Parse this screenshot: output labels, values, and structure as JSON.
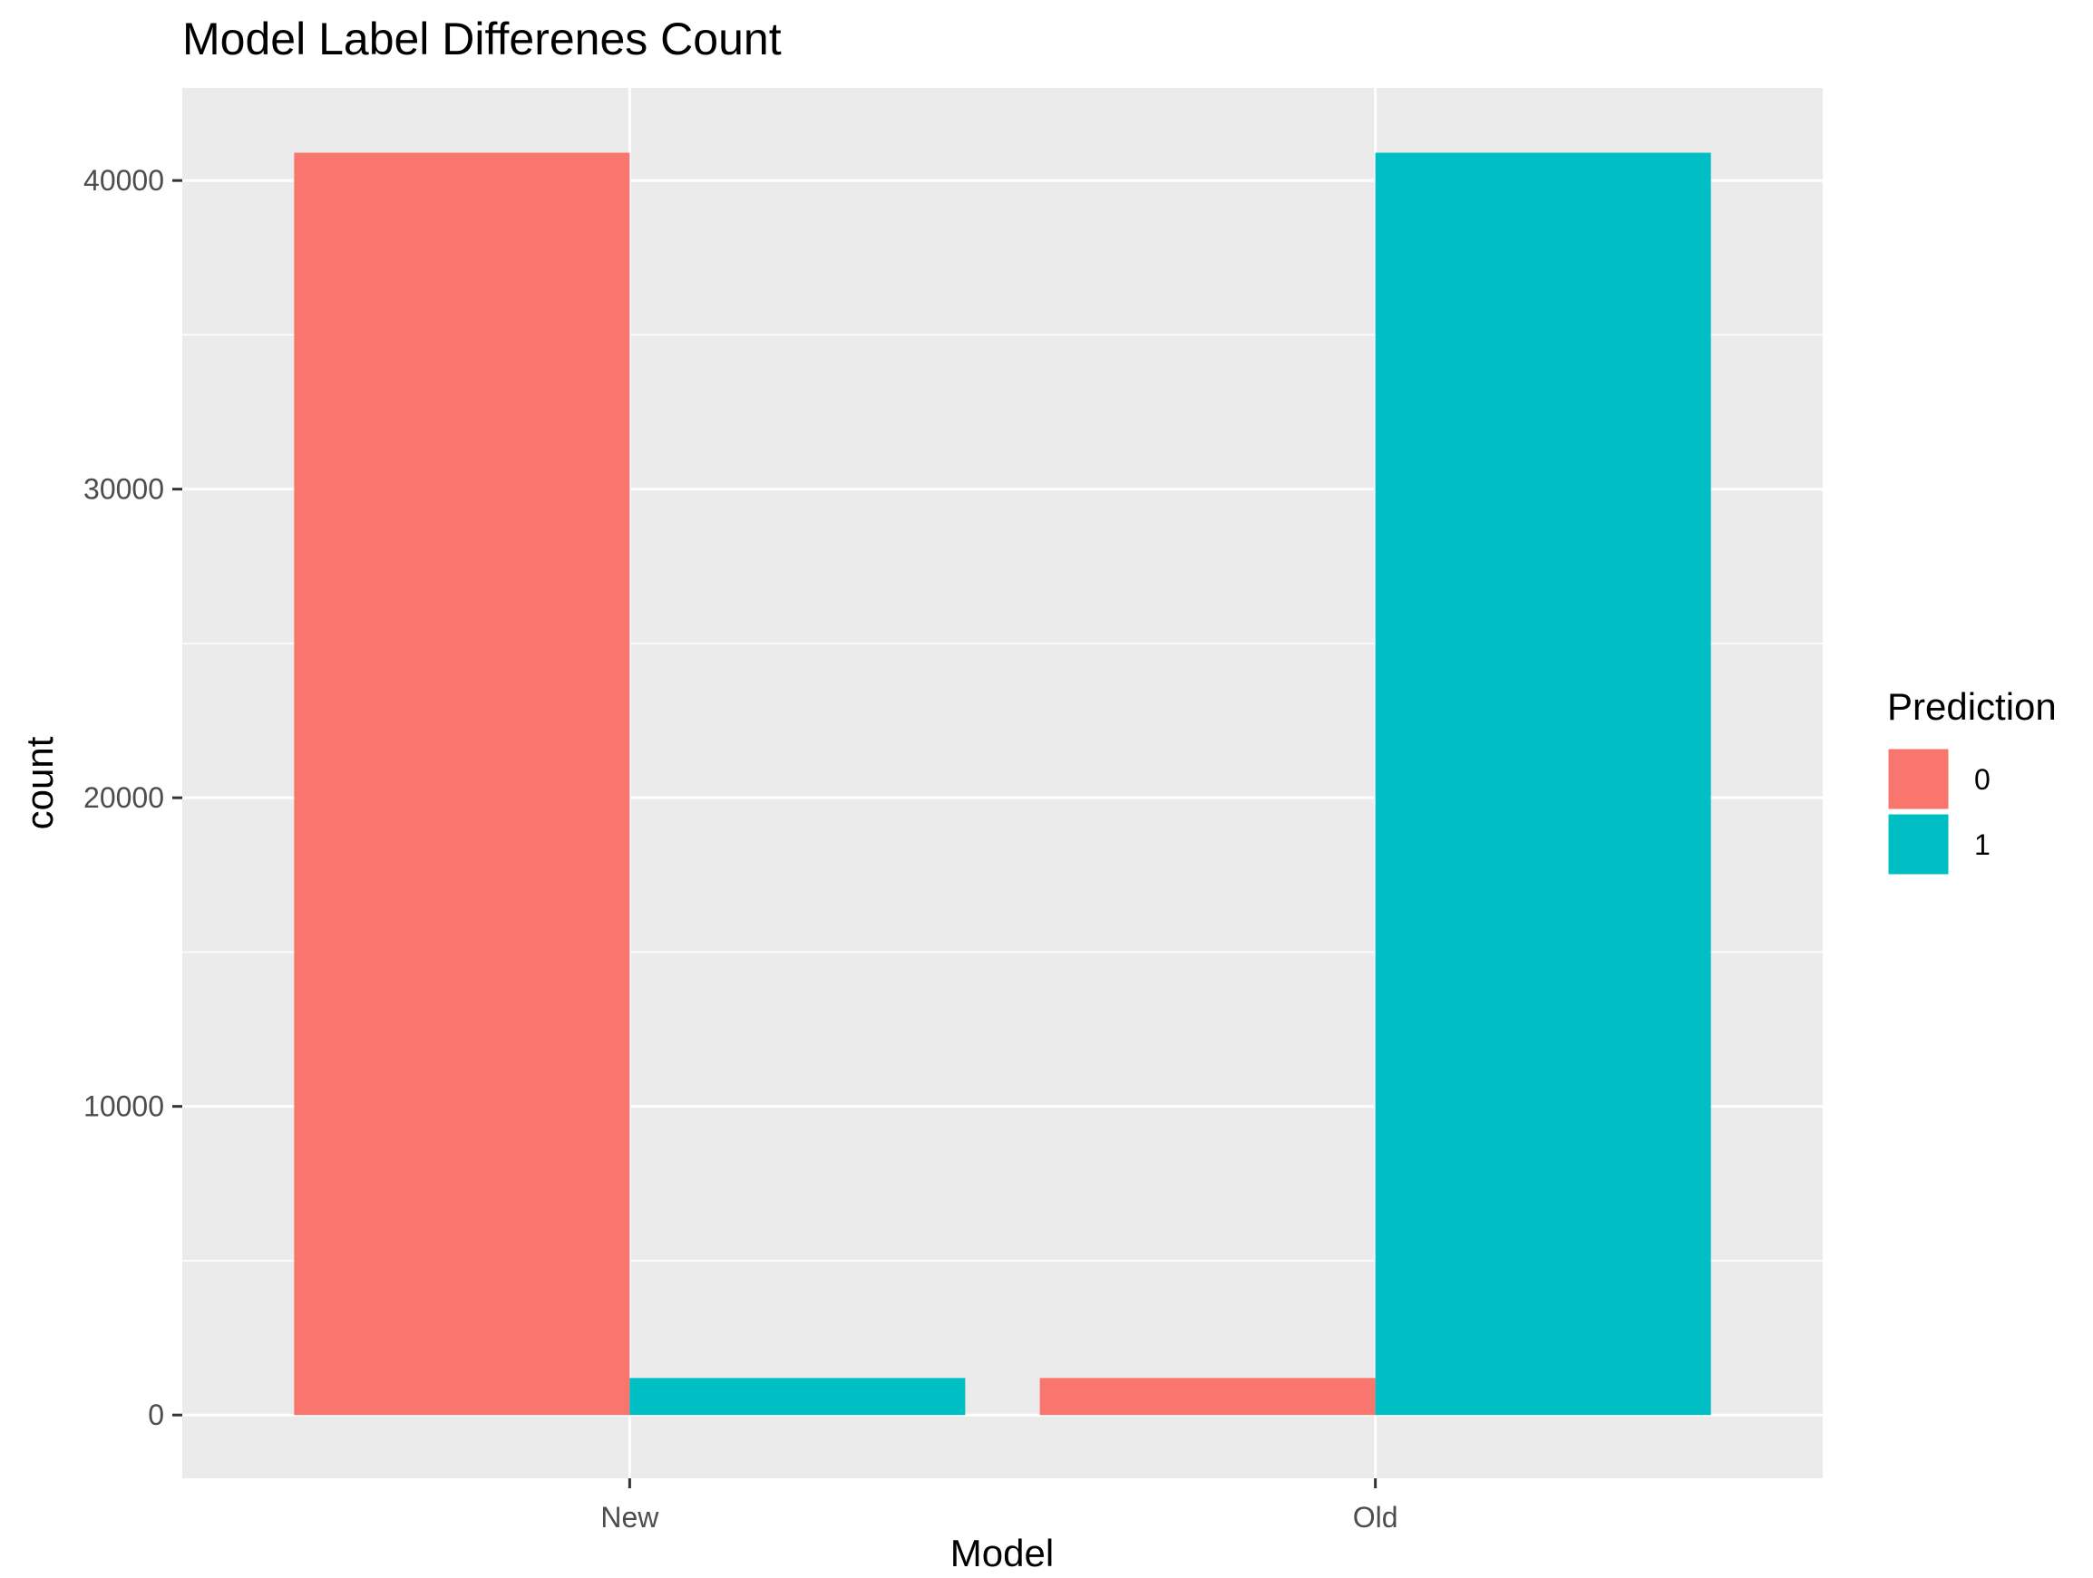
{
  "chart_data": {
    "type": "bar",
    "title": "Model Label Differenes Count",
    "xlabel": "Model",
    "ylabel": "count",
    "categories": [
      "New",
      "Old"
    ],
    "series": [
      {
        "name": "0",
        "values": [
          40900,
          1200
        ],
        "color": "#F8766D"
      },
      {
        "name": "1",
        "values": [
          1200,
          40900
        ],
        "color": "#00BFC4"
      }
    ],
    "ylim": [
      -2050,
      43000
    ],
    "yticks": [
      0,
      10000,
      20000,
      30000,
      40000
    ],
    "ytick_labels": [
      "0",
      "10000",
      "20000",
      "30000",
      "40000"
    ],
    "legend": {
      "title": "Prediction",
      "position": "right"
    },
    "grid": true,
    "panel_color": "#EBEBEB",
    "grid_color": "#FFFFFF"
  }
}
